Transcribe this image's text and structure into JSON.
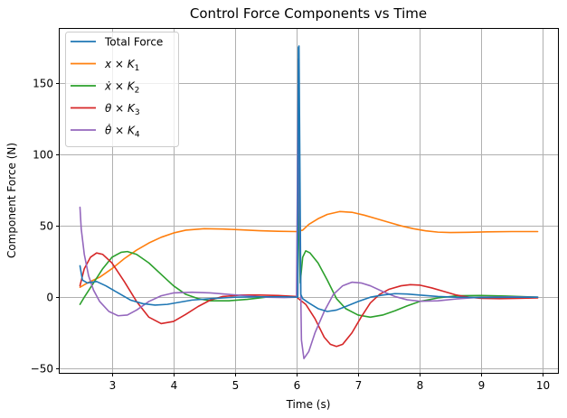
{
  "chart_data": {
    "type": "line",
    "title": "Control Force Components vs Time",
    "xlabel": "Time (s)",
    "ylabel": "Component Force (N)",
    "xlim": [
      2.15,
      10.25
    ],
    "ylim": [
      -53,
      188
    ],
    "xticks": [
      3,
      4,
      5,
      6,
      7,
      8,
      9,
      10
    ],
    "yticks": [
      -50,
      0,
      50,
      100,
      150
    ],
    "grid": true,
    "legend_position": "top-left",
    "series": [
      {
        "name": "Total Force",
        "color": "#1f77b4",
        "points": [
          [
            2.48,
            22
          ],
          [
            2.52,
            12
          ],
          [
            2.6,
            10
          ],
          [
            2.75,
            11
          ],
          [
            2.9,
            8
          ],
          [
            3.1,
            3
          ],
          [
            3.3,
            -2
          ],
          [
            3.5,
            -4.5
          ],
          [
            3.7,
            -5.5
          ],
          [
            3.9,
            -5
          ],
          [
            4.1,
            -3.5
          ],
          [
            4.3,
            -2
          ],
          [
            4.6,
            -1
          ],
          [
            5.0,
            0
          ],
          [
            5.4,
            0.3
          ],
          [
            5.8,
            0.3
          ],
          [
            6.02,
            0
          ],
          [
            6.03,
            175
          ],
          [
            6.04,
            176
          ],
          [
            6.05,
            120
          ],
          [
            6.07,
            2
          ],
          [
            6.1,
            -1
          ],
          [
            6.2,
            -4
          ],
          [
            6.35,
            -8
          ],
          [
            6.5,
            -10
          ],
          [
            6.65,
            -9
          ],
          [
            6.8,
            -6.5
          ],
          [
            7.0,
            -3
          ],
          [
            7.2,
            0
          ],
          [
            7.4,
            1.5
          ],
          [
            7.6,
            2.5
          ],
          [
            7.8,
            2.2
          ],
          [
            8.0,
            1.5
          ],
          [
            8.3,
            0.5
          ],
          [
            8.6,
            0
          ],
          [
            9.0,
            -0.2
          ],
          [
            9.5,
            0
          ],
          [
            9.92,
            0
          ]
        ]
      },
      {
        "name": "x × K₁",
        "legend_main": "x × K",
        "legend_sub": "1",
        "color": "#ff7f0e",
        "points": [
          [
            2.48,
            7
          ],
          [
            2.6,
            10
          ],
          [
            2.8,
            14
          ],
          [
            3.0,
            20
          ],
          [
            3.2,
            27
          ],
          [
            3.4,
            33
          ],
          [
            3.6,
            38
          ],
          [
            3.8,
            42
          ],
          [
            4.0,
            45
          ],
          [
            4.2,
            47
          ],
          [
            4.5,
            48
          ],
          [
            4.8,
            47.8
          ],
          [
            5.1,
            47.2
          ],
          [
            5.4,
            46.6
          ],
          [
            5.7,
            46.2
          ],
          [
            6.0,
            46
          ],
          [
            6.1,
            47
          ],
          [
            6.2,
            51
          ],
          [
            6.35,
            55
          ],
          [
            6.5,
            58
          ],
          [
            6.7,
            60
          ],
          [
            6.9,
            59.5
          ],
          [
            7.1,
            57.5
          ],
          [
            7.3,
            55
          ],
          [
            7.5,
            52.5
          ],
          [
            7.7,
            50
          ],
          [
            7.9,
            48
          ],
          [
            8.1,
            46.5
          ],
          [
            8.3,
            45.6
          ],
          [
            8.5,
            45.3
          ],
          [
            8.8,
            45.5
          ],
          [
            9.1,
            45.8
          ],
          [
            9.5,
            46
          ],
          [
            9.92,
            46
          ]
        ]
      },
      {
        "name": "ẋ × K₂",
        "legend_main": "ẋ × K",
        "legend_sub": "2",
        "color": "#2ca02c",
        "points": [
          [
            2.48,
            -5
          ],
          [
            2.55,
            0
          ],
          [
            2.7,
            10
          ],
          [
            2.85,
            20
          ],
          [
            3.0,
            28
          ],
          [
            3.15,
            31.5
          ],
          [
            3.25,
            32
          ],
          [
            3.4,
            30
          ],
          [
            3.6,
            24
          ],
          [
            3.8,
            16
          ],
          [
            4.0,
            8
          ],
          [
            4.2,
            2
          ],
          [
            4.4,
            -1
          ],
          [
            4.6,
            -2.5
          ],
          [
            4.9,
            -2.5
          ],
          [
            5.2,
            -1.5
          ],
          [
            5.5,
            0
          ],
          [
            5.8,
            0.5
          ],
          [
            6.02,
            0
          ],
          [
            6.03,
            90
          ],
          [
            6.04,
            60
          ],
          [
            6.06,
            10
          ],
          [
            6.1,
            28
          ],
          [
            6.15,
            32.5
          ],
          [
            6.22,
            31
          ],
          [
            6.35,
            24
          ],
          [
            6.5,
            12
          ],
          [
            6.65,
            -1
          ],
          [
            6.8,
            -8
          ],
          [
            7.0,
            -12.5
          ],
          [
            7.2,
            -14
          ],
          [
            7.4,
            -12.5
          ],
          [
            7.6,
            -9.5
          ],
          [
            7.8,
            -6
          ],
          [
            8.0,
            -3
          ],
          [
            8.3,
            -0.5
          ],
          [
            8.6,
            1
          ],
          [
            9.0,
            1.2
          ],
          [
            9.4,
            0.8
          ],
          [
            9.92,
            0
          ]
        ]
      },
      {
        "name": "θ × K₃",
        "legend_main": "θ × K",
        "legend_sub": "3",
        "color": "#d62728",
        "points": [
          [
            2.48,
            8
          ],
          [
            2.55,
            20
          ],
          [
            2.65,
            28
          ],
          [
            2.75,
            31
          ],
          [
            2.85,
            30
          ],
          [
            3.0,
            24
          ],
          [
            3.2,
            11
          ],
          [
            3.4,
            -3
          ],
          [
            3.6,
            -14
          ],
          [
            3.8,
            -18.5
          ],
          [
            4.0,
            -17
          ],
          [
            4.2,
            -12
          ],
          [
            4.4,
            -6.5
          ],
          [
            4.6,
            -2
          ],
          [
            4.8,
            0.5
          ],
          [
            5.1,
            1.5
          ],
          [
            5.4,
            1.5
          ],
          [
            5.7,
            1.2
          ],
          [
            6.0,
            0.5
          ],
          [
            6.03,
            -1
          ],
          [
            6.15,
            -5
          ],
          [
            6.3,
            -15
          ],
          [
            6.45,
            -28
          ],
          [
            6.55,
            -33
          ],
          [
            6.65,
            -34.5
          ],
          [
            6.75,
            -33
          ],
          [
            6.9,
            -25
          ],
          [
            7.05,
            -14
          ],
          [
            7.2,
            -4
          ],
          [
            7.35,
            2
          ],
          [
            7.5,
            5.5
          ],
          [
            7.7,
            8
          ],
          [
            7.85,
            8.8
          ],
          [
            8.0,
            8.5
          ],
          [
            8.2,
            6.5
          ],
          [
            8.4,
            4
          ],
          [
            8.6,
            1.5
          ],
          [
            8.8,
            0
          ],
          [
            9.0,
            -0.8
          ],
          [
            9.3,
            -1
          ],
          [
            9.6,
            -0.8
          ],
          [
            9.92,
            -0.5
          ]
        ]
      },
      {
        "name": "θ̇ × K₄",
        "legend_main": "θ̇ × K",
        "legend_sub": "4",
        "color": "#9467bd",
        "points": [
          [
            2.48,
            63
          ],
          [
            2.5,
            48
          ],
          [
            2.55,
            30
          ],
          [
            2.62,
            15
          ],
          [
            2.7,
            5
          ],
          [
            2.8,
            -3
          ],
          [
            2.95,
            -10
          ],
          [
            3.1,
            -13
          ],
          [
            3.25,
            -12.5
          ],
          [
            3.4,
            -9
          ],
          [
            3.6,
            -3
          ],
          [
            3.8,
            1
          ],
          [
            4.0,
            3
          ],
          [
            4.3,
            3.5
          ],
          [
            4.6,
            3
          ],
          [
            4.9,
            2
          ],
          [
            5.2,
            1
          ],
          [
            5.5,
            0
          ],
          [
            5.8,
            -0.2
          ],
          [
            6.0,
            0
          ],
          [
            6.03,
            167
          ],
          [
            6.05,
            60
          ],
          [
            6.08,
            -30
          ],
          [
            6.12,
            -43
          ],
          [
            6.2,
            -38
          ],
          [
            6.3,
            -25
          ],
          [
            6.45,
            -10
          ],
          [
            6.6,
            2
          ],
          [
            6.75,
            8
          ],
          [
            6.9,
            10.5
          ],
          [
            7.05,
            10
          ],
          [
            7.2,
            8
          ],
          [
            7.4,
            4
          ],
          [
            7.6,
            0.5
          ],
          [
            7.8,
            -1.8
          ],
          [
            8.0,
            -2.8
          ],
          [
            8.3,
            -2.5
          ],
          [
            8.6,
            -1.2
          ],
          [
            9.0,
            0
          ],
          [
            9.5,
            0.3
          ],
          [
            9.92,
            0
          ]
        ]
      }
    ]
  }
}
